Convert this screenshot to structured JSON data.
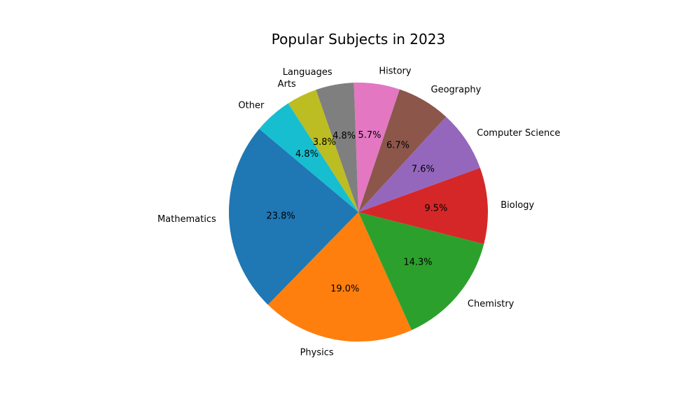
{
  "chart_data": {
    "type": "pie",
    "title": "Popular Subjects in 2023",
    "categories": [
      "Mathematics",
      "Physics",
      "Chemistry",
      "Biology",
      "Computer Science",
      "Geography",
      "History",
      "Languages",
      "Arts",
      "Other"
    ],
    "values": [
      25,
      20,
      15,
      10,
      8,
      7,
      6,
      5,
      4,
      5
    ],
    "percent_labels": [
      "23.8%",
      "19.0%",
      "14.3%",
      "9.5%",
      "7.6%",
      "6.7%",
      "5.7%",
      "4.8%",
      "3.8%",
      "4.8%"
    ],
    "colors": [
      "#1f77b4",
      "#ff7f0e",
      "#2ca02c",
      "#d62728",
      "#9467bd",
      "#8c564b",
      "#e377c2",
      "#7f7f7f",
      "#bcbd22",
      "#17becf"
    ],
    "start_angle_deg": 140,
    "direction": "counterclockwise",
    "legend": "none"
  }
}
